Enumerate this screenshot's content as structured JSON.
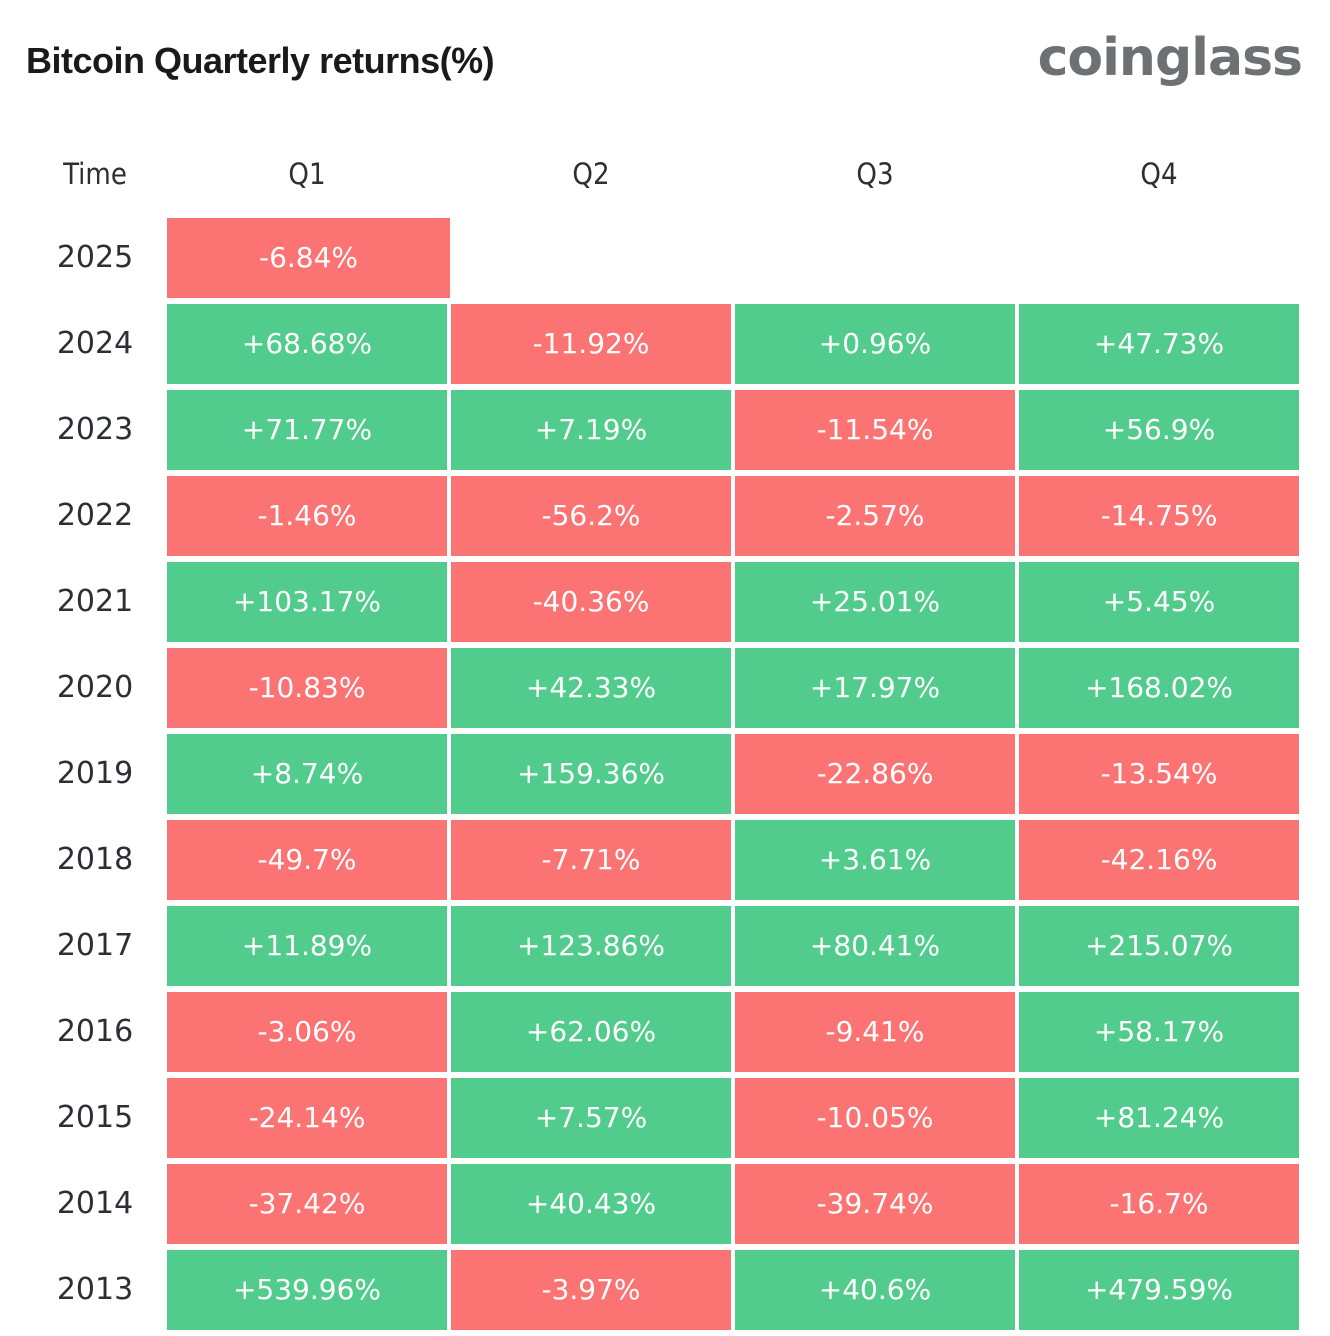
{
  "header": {
    "title": "Bitcoin Quarterly returns(%)",
    "logo": "coinglass"
  },
  "colors": {
    "positive": "#52cc8c",
    "negative": "#fb7373"
  },
  "chart_data": {
    "type": "heatmap",
    "title": "Bitcoin Quarterly returns(%)",
    "row_header": "Time",
    "columns": [
      "Q1",
      "Q2",
      "Q3",
      "Q4"
    ],
    "rows": [
      {
        "year": "2025",
        "values": [
          "-6.84%",
          null,
          null,
          null
        ]
      },
      {
        "year": "2024",
        "values": [
          "+68.68%",
          "-11.92%",
          "+0.96%",
          "+47.73%"
        ]
      },
      {
        "year": "2023",
        "values": [
          "+71.77%",
          "+7.19%",
          "-11.54%",
          "+56.9%"
        ]
      },
      {
        "year": "2022",
        "values": [
          "-1.46%",
          "-56.2%",
          "-2.57%",
          "-14.75%"
        ]
      },
      {
        "year": "2021",
        "values": [
          "+103.17%",
          "-40.36%",
          "+25.01%",
          "+5.45%"
        ]
      },
      {
        "year": "2020",
        "values": [
          "-10.83%",
          "+42.33%",
          "+17.97%",
          "+168.02%"
        ]
      },
      {
        "year": "2019",
        "values": [
          "+8.74%",
          "+159.36%",
          "-22.86%",
          "-13.54%"
        ]
      },
      {
        "year": "2018",
        "values": [
          "-49.7%",
          "-7.71%",
          "+3.61%",
          "-42.16%"
        ]
      },
      {
        "year": "2017",
        "values": [
          "+11.89%",
          "+123.86%",
          "+80.41%",
          "+215.07%"
        ]
      },
      {
        "year": "2016",
        "values": [
          "-3.06%",
          "+62.06%",
          "-9.41%",
          "+58.17%"
        ]
      },
      {
        "year": "2015",
        "values": [
          "-24.14%",
          "+7.57%",
          "-10.05%",
          "+81.24%"
        ]
      },
      {
        "year": "2014",
        "values": [
          "-37.42%",
          "+40.43%",
          "-39.74%",
          "-16.7%"
        ]
      },
      {
        "year": "2013",
        "values": [
          "+539.96%",
          "-3.97%",
          "+40.6%",
          "+479.59%"
        ]
      }
    ]
  }
}
